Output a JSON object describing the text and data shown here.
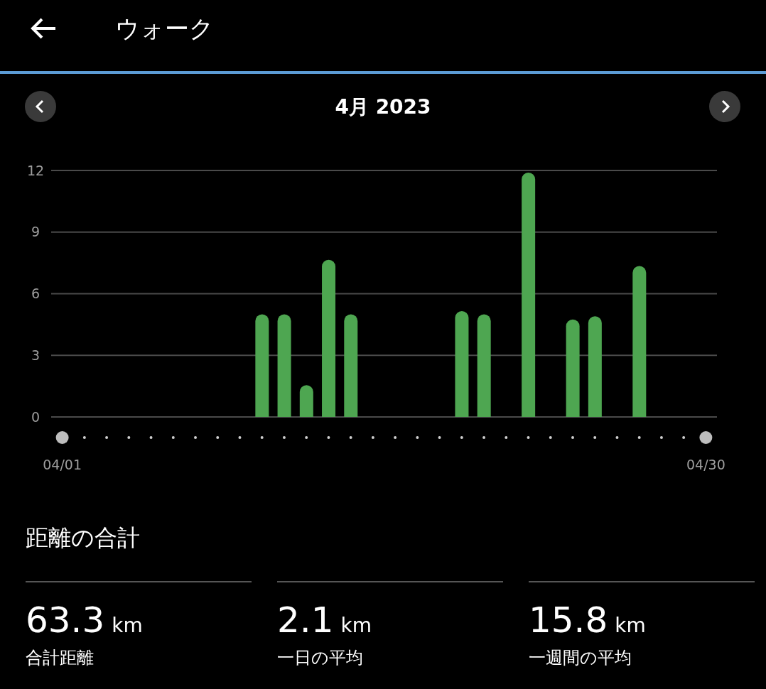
{
  "chart_data": {
    "type": "bar",
    "title": "ウォーク",
    "subtitle": "4月 2023",
    "categories": [
      "04/01",
      null,
      null,
      null,
      null,
      null,
      null,
      null,
      null,
      null,
      null,
      null,
      null,
      null,
      null,
      null,
      null,
      null,
      null,
      null,
      null,
      null,
      null,
      null,
      null,
      null,
      null,
      null,
      null,
      "04/30"
    ],
    "values": [
      null,
      null,
      null,
      null,
      null,
      null,
      null,
      null,
      null,
      5.0,
      5.0,
      1.55,
      7.65,
      5.0,
      null,
      null,
      null,
      null,
      5.15,
      5.0,
      null,
      11.9,
      null,
      4.75,
      4.9,
      null,
      7.35,
      null,
      null,
      null
    ],
    "color": "#4ea651",
    "ylim": [
      0,
      12
    ],
    "yticks": [
      0,
      3,
      6,
      9,
      12
    ],
    "grid": "y",
    "annotations": [
      "距離の合計",
      "63.3",
      "km",
      "合計距離",
      "2.1",
      "km",
      "一日の平均",
      "15.8",
      "km",
      "一週間の平均"
    ]
  }
}
